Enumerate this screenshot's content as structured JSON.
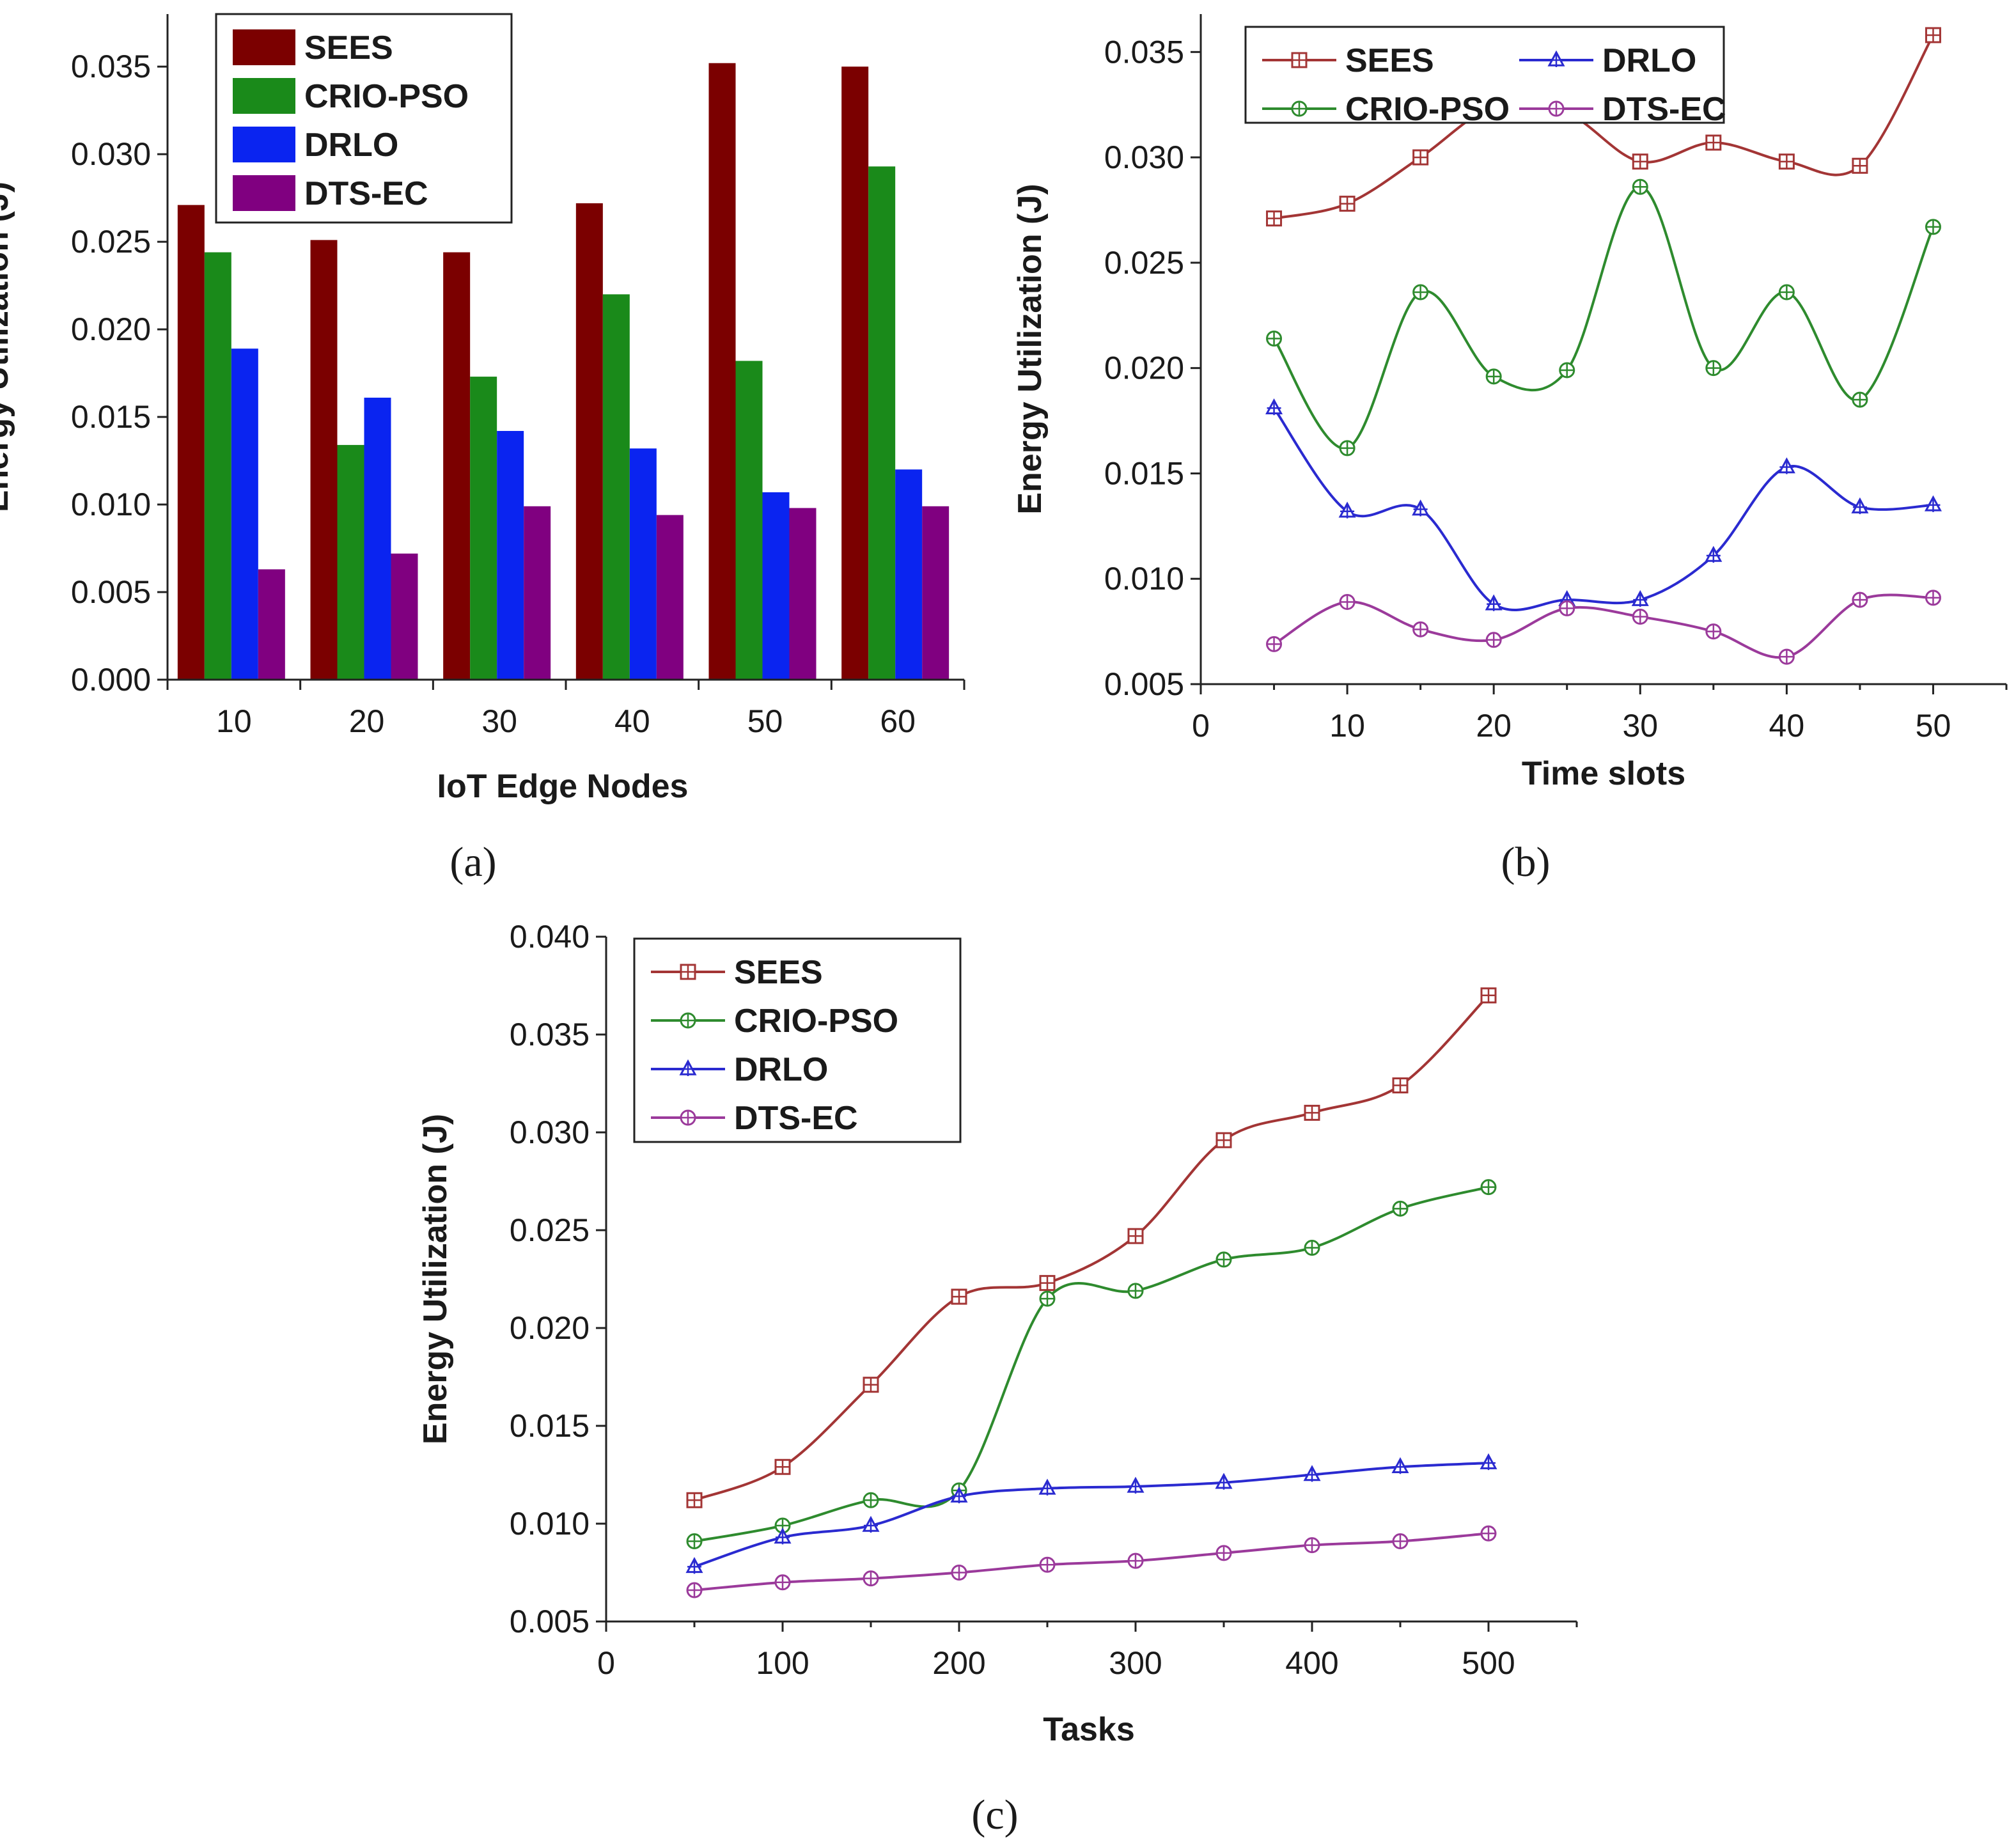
{
  "colors": {
    "SEES_bar": "#7b0000",
    "CRIO_PSO_bar": "#1a8a1a",
    "DRLO_bar": "#0a24f0",
    "DTS_EC_bar": "#800080",
    "SEES_line": "#a33535",
    "CRIO_PSO_line": "#2e8b2e",
    "DRLO_line": "#2a2ad0",
    "DTS_EC_line": "#9b3a9b"
  },
  "chart_data": [
    {
      "panel": "a",
      "panel_label": "(a)",
      "type": "bar",
      "xlabel": "IoT Edge Nodes",
      "ylabel": "Energy Utilization (J)",
      "categories": [
        "10",
        "20",
        "30",
        "40",
        "50",
        "60"
      ],
      "ylim": [
        0,
        0.038
      ],
      "yticks": [
        "0.000",
        "0.005",
        "0.010",
        "0.015",
        "0.020",
        "0.025",
        "0.030",
        "0.035"
      ],
      "legend_position": "top-left",
      "series": [
        {
          "name": "SEES",
          "values": [
            0.0271,
            0.0251,
            0.0244,
            0.0272,
            0.0352,
            0.035
          ]
        },
        {
          "name": "CRIO-PSO",
          "values": [
            0.0244,
            0.0134,
            0.0173,
            0.022,
            0.0182,
            0.0293
          ]
        },
        {
          "name": "DRLO",
          "values": [
            0.0189,
            0.0161,
            0.0142,
            0.0132,
            0.0107,
            0.012
          ]
        },
        {
          "name": "DTS-EC",
          "values": [
            0.0063,
            0.0072,
            0.0099,
            0.0094,
            0.0098,
            0.0099
          ]
        }
      ]
    },
    {
      "panel": "b",
      "panel_label": "(b)",
      "type": "line",
      "xlabel": "Time slots",
      "ylabel": "Energy Utilization (J)",
      "x": [
        5,
        10,
        15,
        20,
        25,
        30,
        35,
        40,
        45,
        50
      ],
      "xlim": [
        0,
        55
      ],
      "xticks": [
        "0",
        "10",
        "20",
        "30",
        "40",
        "50"
      ],
      "ylim": [
        0.005,
        0.0368
      ],
      "yticks": [
        "0.005",
        "0.010",
        "0.015",
        "0.020",
        "0.025",
        "0.030",
        "0.035"
      ],
      "legend_position": "top-left",
      "series": [
        {
          "name": "SEES",
          "marker": "square-plus",
          "values": [
            0.0271,
            0.0278,
            0.03,
            0.0324,
            0.0321,
            0.0298,
            0.0307,
            0.0298,
            0.0296,
            0.0358
          ]
        },
        {
          "name": "CRIO-PSO",
          "marker": "circle-plus",
          "values": [
            0.0214,
            0.0162,
            0.0236,
            0.0196,
            0.0199,
            0.0286,
            0.02,
            0.0236,
            0.0185,
            0.0267
          ]
        },
        {
          "name": "DRLO",
          "marker": "triangle",
          "values": [
            0.0181,
            0.0132,
            0.0133,
            0.0088,
            0.009,
            0.009,
            0.0111,
            0.0153,
            0.0134,
            0.0135
          ]
        },
        {
          "name": "DTS-EC",
          "marker": "circle-plus",
          "values": [
            0.0069,
            0.0089,
            0.0076,
            0.0071,
            0.0086,
            0.0082,
            0.0075,
            0.0063,
            0.009,
            0.0091
          ]
        }
      ]
    },
    {
      "panel": "c",
      "panel_label": "(c)",
      "type": "line",
      "xlabel": "Tasks",
      "ylabel": "Energy Utilization (J)",
      "x": [
        50,
        100,
        150,
        200,
        250,
        300,
        350,
        400,
        450,
        500
      ],
      "xlim": [
        0,
        550
      ],
      "xticks": [
        "0",
        "100",
        "200",
        "300",
        "400",
        "500"
      ],
      "ylim": [
        0.005,
        0.04
      ],
      "yticks": [
        "0.005",
        "0.010",
        "0.015",
        "0.020",
        "0.025",
        "0.030",
        "0.035",
        "0.040"
      ],
      "legend_position": "top-left",
      "series": [
        {
          "name": "SEES",
          "marker": "square-plus",
          "values": [
            0.0112,
            0.0129,
            0.0171,
            0.0216,
            0.0223,
            0.0247,
            0.0296,
            0.031,
            0.0324,
            0.037
          ]
        },
        {
          "name": "CRIO-PSO",
          "marker": "circle-plus",
          "values": [
            0.0091,
            0.0099,
            0.0112,
            0.0117,
            0.0215,
            0.0219,
            0.0235,
            0.0241,
            0.0261,
            0.0272
          ]
        },
        {
          "name": "DRLO",
          "marker": "triangle",
          "values": [
            0.0078,
            0.0093,
            0.0099,
            0.0114,
            0.0118,
            0.0119,
            0.0121,
            0.0125,
            0.0129,
            0.0131
          ]
        },
        {
          "name": "DTS-EC",
          "marker": "circle-plus",
          "values": [
            0.0066,
            0.007,
            0.0072,
            0.0075,
            0.0079,
            0.0081,
            0.0085,
            0.0089,
            0.0091,
            0.0095
          ]
        }
      ]
    }
  ]
}
